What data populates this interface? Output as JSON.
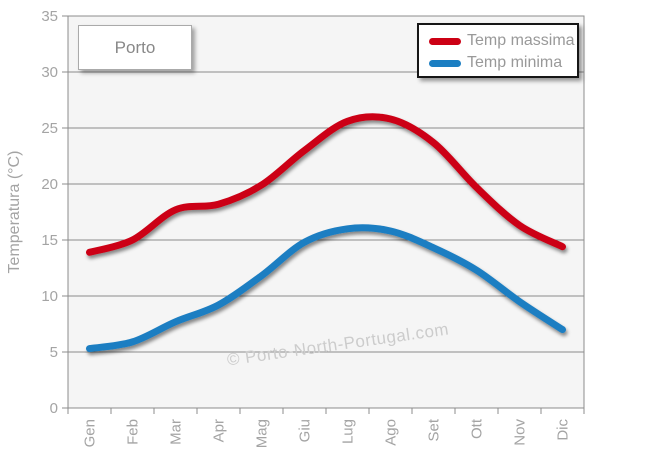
{
  "chart_data": {
    "type": "line",
    "title": "Porto",
    "ylabel": "Temperatura (°C)",
    "ylim": [
      0,
      35
    ],
    "ytick_step": 5,
    "grid": true,
    "legend_position": "top-right",
    "categories": [
      "Gen",
      "Feb",
      "Mar",
      "Apr",
      "Mag",
      "Giu",
      "Lug",
      "Ago",
      "Set",
      "Ott",
      "Nov",
      "Dic"
    ],
    "series": [
      {
        "name": "Temp massima",
        "color": "#cc0014",
        "values": [
          13.9,
          15.0,
          17.7,
          18.2,
          19.9,
          23.0,
          25.6,
          25.8,
          23.7,
          19.7,
          16.3,
          14.4
        ]
      },
      {
        "name": "Temp minima",
        "color": "#1b7ec2",
        "values": [
          5.3,
          5.9,
          7.7,
          9.2,
          11.8,
          14.8,
          16.0,
          15.8,
          14.3,
          12.3,
          9.5,
          7.0
        ]
      }
    ],
    "watermark": "© Porto-North-Portugal.com",
    "colors": {
      "plot_bg": "#f5f5f5",
      "grid": "#8c8c8c",
      "axis_text": "#a4a4a4",
      "legend_text": "#999999",
      "title_text": "#888888",
      "watermark_text": "#cccccc"
    }
  }
}
